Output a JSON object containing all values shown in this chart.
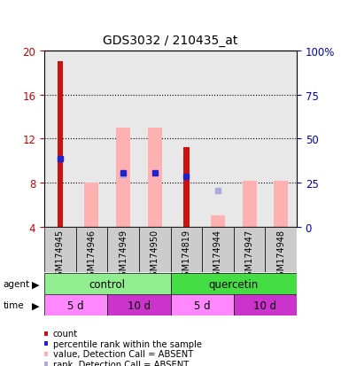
{
  "title": "GDS3032 / 210435_at",
  "samples": [
    "GSM174945",
    "GSM174946",
    "GSM174949",
    "GSM174950",
    "GSM174819",
    "GSM174944",
    "GSM174947",
    "GSM174948"
  ],
  "red_bar_values": [
    19.0,
    null,
    null,
    null,
    11.2,
    null,
    null,
    null
  ],
  "pink_bar_values": [
    null,
    8.0,
    13.0,
    13.0,
    null,
    5.0,
    8.2,
    8.2
  ],
  "blue_square_values": [
    10.2,
    null,
    8.85,
    8.85,
    8.6,
    null,
    null,
    null
  ],
  "light_blue_square_values": [
    null,
    null,
    8.7,
    null,
    null,
    7.3,
    null,
    null
  ],
  "ylim_left": [
    4,
    20
  ],
  "ylim_right": [
    0,
    100
  ],
  "yticks_left": [
    4,
    8,
    12,
    16,
    20
  ],
  "yticks_right": [
    0,
    25,
    50,
    75,
    100
  ],
  "ytick_labels_right": [
    "0",
    "25",
    "50",
    "75",
    "100%"
  ],
  "agent_groups": [
    {
      "label": "control",
      "color": "#90EE90",
      "start": 0,
      "end": 4
    },
    {
      "label": "quercetin",
      "color": "#44DD44",
      "start": 4,
      "end": 8
    }
  ],
  "time_groups": [
    {
      "label": "5 d",
      "color": "#FF88FF",
      "start": 0,
      "end": 2
    },
    {
      "label": "10 d",
      "color": "#CC33CC",
      "start": 2,
      "end": 4
    },
    {
      "label": "5 d",
      "color": "#FF88FF",
      "start": 4,
      "end": 6
    },
    {
      "label": "10 d",
      "color": "#CC33CC",
      "start": 6,
      "end": 8
    }
  ],
  "red_color": "#CC1111",
  "pink_color": "#FFB0B0",
  "blue_color": "#2222CC",
  "light_blue_color": "#AAAADD",
  "left_tick_color": "#CC0000",
  "right_tick_color": "#0000BB",
  "bg_color": "#FFFFFF",
  "col_bg_color": "#CCCCCC",
  "figsize": [
    3.85,
    4.14
  ],
  "dpi": 100
}
